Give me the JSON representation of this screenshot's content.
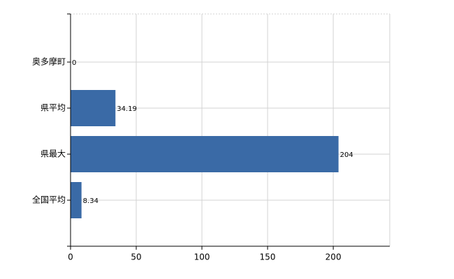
{
  "chart_data": {
    "type": "bar",
    "orientation": "horizontal",
    "categories": [
      "奥多摩町",
      "県平均",
      "県最大",
      "全国平均"
    ],
    "values": [
      0,
      34.19,
      204,
      8.34
    ],
    "color": "#3a6aa6",
    "xlim": [
      0,
      243
    ],
    "xticks": [
      0,
      50,
      100,
      150,
      200
    ],
    "grid": true
  }
}
